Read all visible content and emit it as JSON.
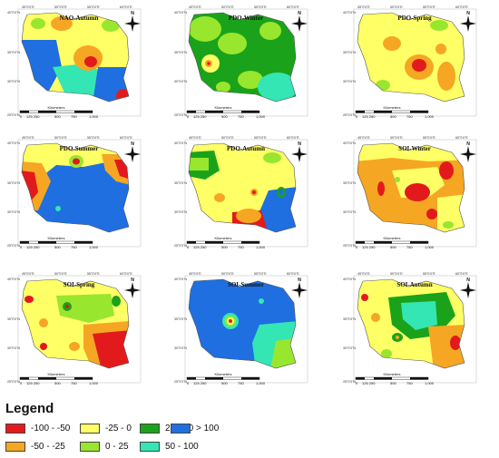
{
  "legend": {
    "title": "Legend",
    "items": [
      {
        "label": "-100 - -50",
        "color": "#e31a1c"
      },
      {
        "label": "-25 - 0",
        "color": "#ffff66"
      },
      {
        "label": "25 - 50",
        "color": "#1aa31a"
      },
      {
        "label": "> 100",
        "color": "#1f6fe0"
      },
      {
        "label": "-50 - -25",
        "color": "#f5a623"
      },
      {
        "label": "0 - 25",
        "color": "#99e62e"
      },
      {
        "label": "50 - 100",
        "color": "#33e6b3"
      }
    ]
  },
  "map_common": {
    "north_label": "N",
    "scale_unit": "Kilometers",
    "scale_ticks": [
      "0",
      "125 250",
      "500",
      "750",
      "1,000"
    ],
    "lon_labels": [
      "45°0'0\"E",
      "50°0'0\"E",
      "55°0'0\"E",
      "60°0'0\"E"
    ],
    "lat_labels": [
      "40°0'0\"N",
      "35°0'0\"N",
      "30°0'0\"N",
      "25°0'0\"N"
    ]
  },
  "panels": [
    {
      "title": "NAO-Autumn"
    },
    {
      "title": "PDO-Winter"
    },
    {
      "title": "PDO-Spring"
    },
    {
      "title": "PDO-Summer"
    },
    {
      "title": "PDO-Autumn"
    },
    {
      "title": "SOI-Winter"
    },
    {
      "title": "SOI-Spring"
    },
    {
      "title": "SOI-Summer"
    },
    {
      "title": "SOI-Autumn"
    }
  ]
}
